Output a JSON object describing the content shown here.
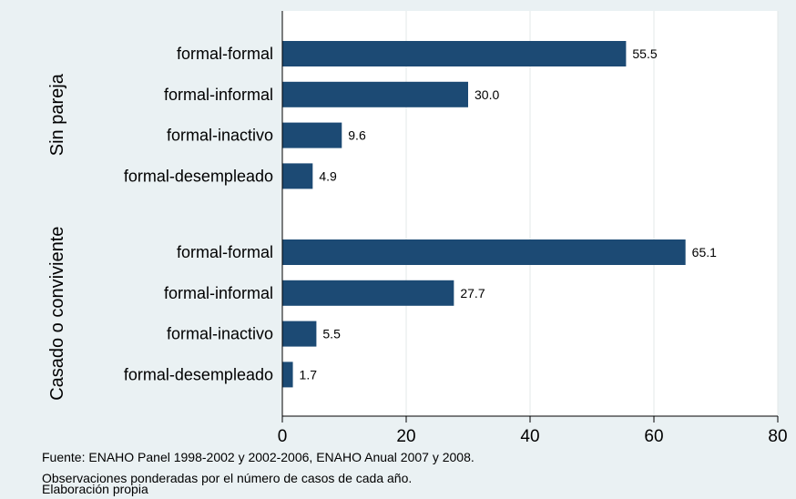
{
  "chart_data": {
    "type": "bar",
    "orientation": "horizontal",
    "groups": [
      {
        "name": "Sin pareja",
        "categories": [
          "formal-formal",
          "formal-informal",
          "formal-inactivo",
          "formal-desempleado"
        ],
        "values": [
          55.5,
          30.0,
          9.6,
          4.9
        ],
        "value_labels": [
          "55.5",
          "30.0",
          "9.6",
          "4.9"
        ]
      },
      {
        "name": "Casado o conviviente",
        "categories": [
          "formal-formal",
          "formal-informal",
          "formal-inactivo",
          "formal-desempleado"
        ],
        "values": [
          65.1,
          27.7,
          5.5,
          1.7
        ],
        "value_labels": [
          "65.1",
          "27.7",
          "5.5",
          "1.7"
        ]
      }
    ],
    "xlim": [
      0,
      80
    ],
    "xticks": [
      0,
      20,
      40,
      60,
      80
    ],
    "xtick_labels": [
      "0",
      "20",
      "40",
      "60",
      "80"
    ],
    "grid": true,
    "bar_color": "#1c4a74",
    "plot_background": "#ffffff",
    "outer_background": "#eaf1f3",
    "notes": [
      "Fuente: ENAHO Panel 1998-2002 y 2002-2006, ENAHO Anual 2007 y 2008.",
      "Observaciones ponderadas por el número de casos de cada año.",
      "Elaboración propia"
    ]
  }
}
